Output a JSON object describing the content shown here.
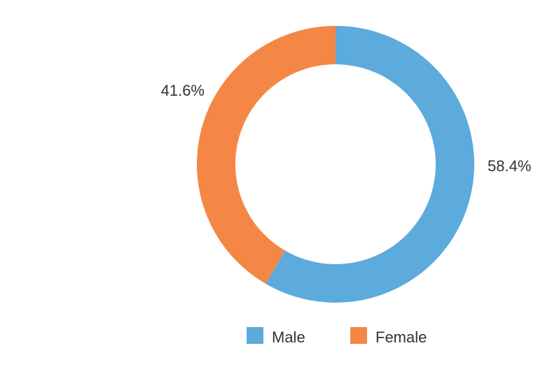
{
  "chart_data": {
    "type": "pie",
    "variant": "donut",
    "categories": [
      "Male",
      "Female"
    ],
    "values": [
      58.4,
      41.6
    ],
    "data_labels": [
      "58.4%",
      "41.6%"
    ],
    "colors": [
      "#5DAADC",
      "#F58746"
    ],
    "legend_position": "bottom"
  },
  "legend": {
    "items": [
      {
        "label": "Male",
        "color": "#5DAADC"
      },
      {
        "label": "Female",
        "color": "#F58746"
      }
    ]
  }
}
